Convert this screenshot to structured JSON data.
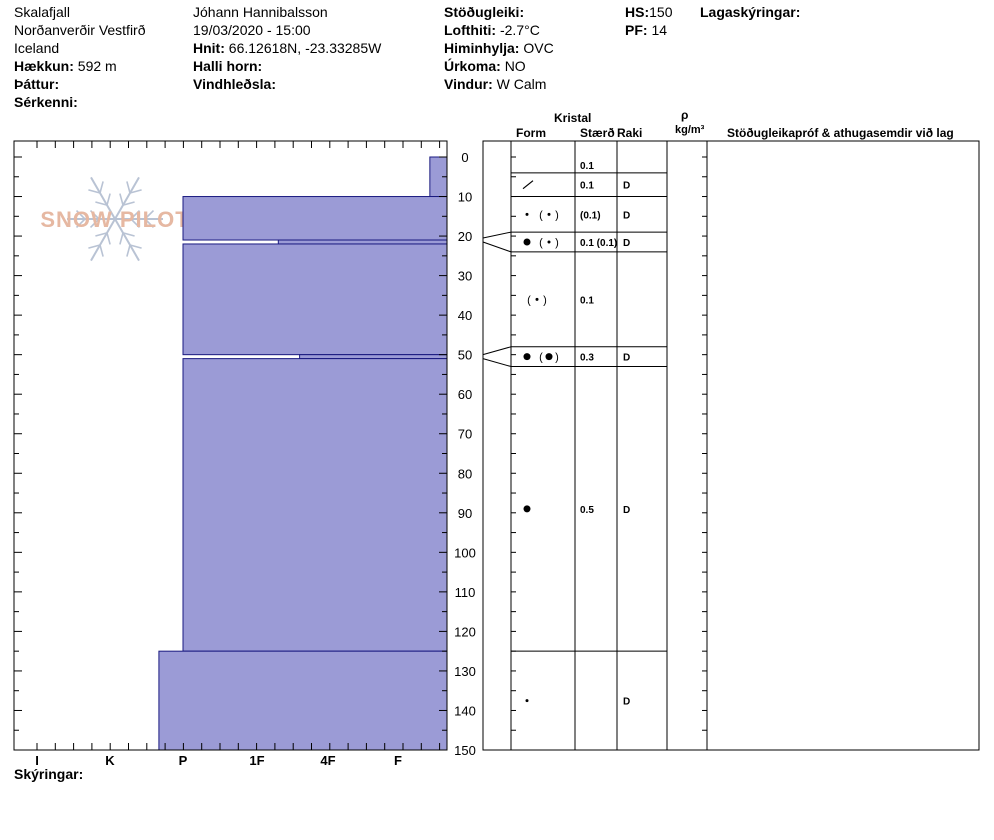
{
  "header": {
    "col1": {
      "location": "Skalafjall",
      "region": "Norðanverðir Vestfirð",
      "country": "Iceland",
      "elevation_label": "Hækkun:",
      "elevation_value": "592 m",
      "aspect_label": "Þáttur:",
      "features_label": "Sérkenni:"
    },
    "col2": {
      "observer": "Jóhann Hannibalsson",
      "datetime": "19/03/2020 - 15:00",
      "coords_label": "Hnit:",
      "coords_value": "66.12618N, -23.33285W",
      "slope_label": "Halli horn:",
      "wind_loading_label": "Vindhleðsla:"
    },
    "col3": {
      "stability_label": "Stöðugleiki:",
      "air_temp_label": "Lofthiti:",
      "air_temp_value": "-2.7°C",
      "sky_label": "Himinhylja:",
      "sky_value": "OVC",
      "precip_label": "Úrkoma:",
      "precip_value": "NO",
      "wind_label": "Vindur:",
      "wind_value": "W Calm"
    },
    "col4": {
      "hs_label": "HS:",
      "hs_value": "150",
      "pf_label": "PF:",
      "pf_value": "14",
      "layers_label": "Lagaskýringar:"
    },
    "footer_label": "Skýringar:"
  },
  "logo_text": "SNOW PILOT",
  "columns": {
    "crystal_label": "Kristal",
    "form_label": "Form",
    "size_label": "Stærð",
    "moisture_label": "Raki",
    "density_symbol": "ρ",
    "density_unit": "kg/m³",
    "comments_label": "Stöðugleikapróf & athugasemdir við lag"
  },
  "colors": {
    "fill": "#9b9bd6",
    "stroke": "#1a1a80",
    "logo": "#e6b8a2"
  },
  "chart_data": {
    "type": "bar",
    "orientation": "horizontal",
    "title": "",
    "xlabel": "",
    "ylabel": "",
    "ylim": [
      0,
      150
    ],
    "y_ticks": [
      0,
      10,
      20,
      30,
      40,
      50,
      60,
      70,
      80,
      90,
      100,
      110,
      120,
      130,
      140,
      150
    ],
    "y_tick_labels": [
      "0",
      "10",
      "20",
      "30",
      "40",
      "50",
      "60",
      "70",
      "80",
      "90",
      "100",
      "110",
      "120",
      "130",
      "140",
      "150"
    ],
    "hardness_scale": [
      "I",
      "K",
      "P",
      "1F",
      "4F",
      "F"
    ],
    "hardness_scale_values": [
      6,
      5,
      4,
      3,
      2,
      1
    ],
    "hardness_layers": [
      {
        "top": 0,
        "bottom": 10,
        "hardness": 0.35
      },
      {
        "top": 10,
        "bottom": 21,
        "hardness": 4
      },
      {
        "top": 21,
        "bottom": 22,
        "hardness": 2.7
      },
      {
        "top": 22,
        "bottom": 50,
        "hardness": 4
      },
      {
        "top": 50,
        "bottom": 51,
        "hardness": 2.4
      },
      {
        "top": 51,
        "bottom": 125,
        "hardness": 4
      },
      {
        "top": 125,
        "bottom": 150,
        "hardness": 4.33
      }
    ],
    "layer_boundaries": [
      0,
      4,
      10,
      19,
      24,
      48,
      53,
      125,
      150
    ],
    "layers": [
      {
        "y": 2,
        "form": [],
        "size": "0.1",
        "moisture": ""
      },
      {
        "y": 7,
        "form": [
          "slash"
        ],
        "size": "0.1",
        "moisture": "D"
      },
      {
        "y": 14.5,
        "form": [
          "dot-sm",
          "paren-dot-sm"
        ],
        "size": "(0.1)",
        "moisture": "D"
      },
      {
        "y": 21.5,
        "form": [
          "dot-lg",
          "paren-dot-sm"
        ],
        "size": "0.1 (0.1)",
        "moisture": "D"
      },
      {
        "y": 36,
        "form": [
          "paren-dot-sm"
        ],
        "size": "0.1",
        "moisture": ""
      },
      {
        "y": 50.5,
        "form": [
          "dot-lg",
          "paren-dot-lg"
        ],
        "size": "0.3",
        "moisture": "D"
      },
      {
        "y": 89,
        "form": [
          "dot-lg"
        ],
        "size": "0.5",
        "moisture": "D"
      },
      {
        "y": 137.5,
        "form": [
          "dot-sm"
        ],
        "size": "",
        "moisture": "D"
      }
    ]
  }
}
